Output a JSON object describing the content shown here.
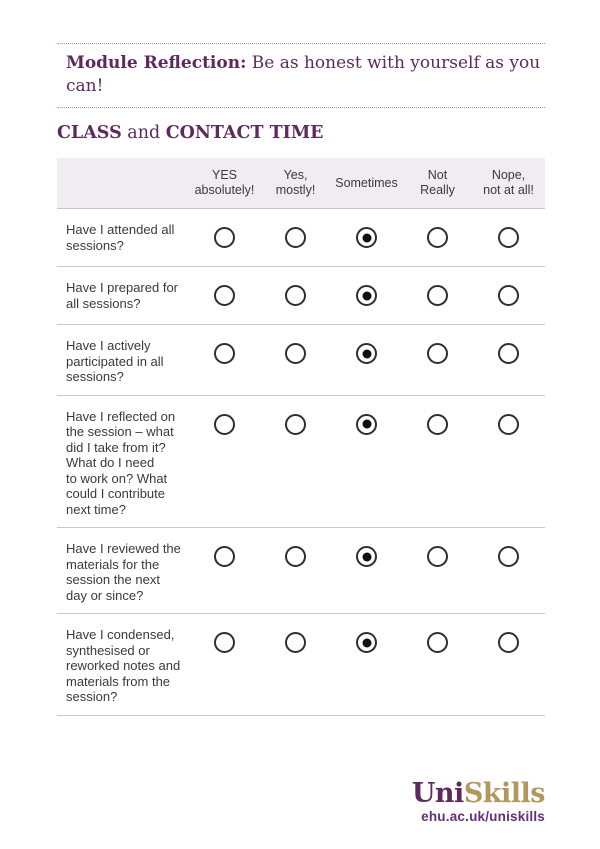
{
  "header": {
    "title_bold": "Module Reflection:",
    "title_rest": " Be as honest with yourself as you can!"
  },
  "section_title": {
    "part1": "CLASS",
    "part2": " and ",
    "part3": "CONTACT TIME"
  },
  "table": {
    "columns": [
      "YES\nabsolutely!",
      "Yes,\nmostly!",
      "Sometimes",
      "Not\nReally",
      "Nope,\nnot at all!"
    ],
    "rows": [
      {
        "question": "Have I attended all\nsessions?",
        "selected": "Sometimes",
        "selected_index": 2
      },
      {
        "question": "Have I prepared for\nall sessions?",
        "selected": "Sometimes",
        "selected_index": 2
      },
      {
        "question": "Have I actively\nparticipated in all\nsessions?",
        "selected": "Sometimes",
        "selected_index": 2
      },
      {
        "question": "Have I reflected on\nthe session – what\ndid I take from it?\nWhat do I need\nto work on? What\ncould I contribute\nnext time?",
        "selected": "Sometimes",
        "selected_index": 2
      },
      {
        "question": "Have I reviewed the\nmaterials for the\nsession the next\nday or since?",
        "selected": "Sometimes",
        "selected_index": 2
      },
      {
        "question": "Have I condensed,\nsynthesised or\nreworked notes and\nmaterials from the\nsession?",
        "selected": "Sometimes",
        "selected_index": 2
      }
    ]
  },
  "footer": {
    "logo_uni": "Uni",
    "logo_skills": "Skills",
    "url": "ehu.ac.uk/uniskills"
  },
  "colors": {
    "purple": "#5e2a5e",
    "gold": "#b2985c",
    "url_purple": "#633173",
    "header_band": "#efecf2",
    "row_divider": "#c9c9c9",
    "dotted_line": "#b092ba",
    "text": "#3a3a3a"
  }
}
